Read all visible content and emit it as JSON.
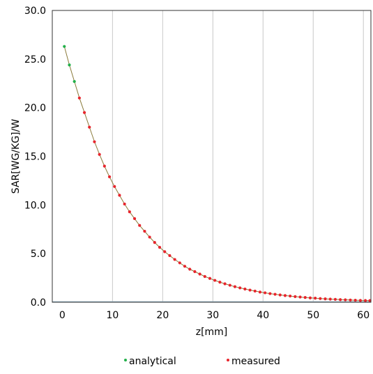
{
  "chart_data": {
    "type": "line",
    "title": "",
    "xlabel": "z[mm]",
    "ylabel": "SAR[WG/KG]/W",
    "xlim": [
      -2,
      61.5
    ],
    "ylim": [
      0,
      30
    ],
    "x_ticks": [
      0,
      10,
      20,
      30,
      40,
      50,
      60
    ],
    "x_tick_labels": [
      "0",
      "10",
      "20",
      "30",
      "40",
      "50",
      "60"
    ],
    "y_ticks": [
      0,
      5,
      10,
      15,
      20,
      25,
      30
    ],
    "y_tick_labels": [
      "0.0",
      "5.0",
      "10.0",
      "15.0",
      "20.0",
      "25.0",
      "30.0"
    ],
    "grid": "vertical",
    "legend_position": "bottom",
    "series": [
      {
        "name": "analytical",
        "color": "#22b04a",
        "x": [
          0.4,
          1.4,
          2.4
        ],
        "y": [
          26.3,
          24.4,
          22.7
        ]
      },
      {
        "name": "measured",
        "color": "#e8242c",
        "x": [
          3.4,
          4.4,
          5.4,
          6.4,
          7.4,
          8.4,
          9.4,
          10.4,
          11.4,
          12.4,
          13.4,
          14.4,
          15.4,
          16.4,
          17.4,
          18.4,
          19.4,
          20.4,
          21.4,
          22.4,
          23.4,
          24.4,
          25.4,
          26.4,
          27.4,
          28.4,
          29.4,
          30.4,
          31.4,
          32.4,
          33.4,
          34.4,
          35.4,
          36.4,
          37.4,
          38.4,
          39.4,
          40.4,
          41.4,
          42.4,
          43.4,
          44.4,
          45.4,
          46.4,
          47.4,
          48.4,
          49.4,
          50.4,
          51.4,
          52.4,
          53.4,
          54.4,
          55.4,
          56.4,
          57.4,
          58.4,
          59.4,
          60.4,
          61.3
        ],
        "y": [
          21.0,
          19.5,
          18.0,
          16.5,
          15.2,
          14.0,
          12.9,
          11.9,
          11.0,
          10.1,
          9.3,
          8.6,
          7.9,
          7.3,
          6.7,
          6.15,
          5.65,
          5.2,
          4.8,
          4.4,
          4.05,
          3.7,
          3.4,
          3.15,
          2.9,
          2.65,
          2.45,
          2.25,
          2.07,
          1.9,
          1.75,
          1.6,
          1.48,
          1.36,
          1.25,
          1.15,
          1.05,
          0.97,
          0.89,
          0.82,
          0.75,
          0.69,
          0.64,
          0.58,
          0.54,
          0.49,
          0.45,
          0.42,
          0.38,
          0.35,
          0.32,
          0.3,
          0.27,
          0.25,
          0.23,
          0.21,
          0.19,
          0.18,
          0.17
        ]
      }
    ]
  }
}
